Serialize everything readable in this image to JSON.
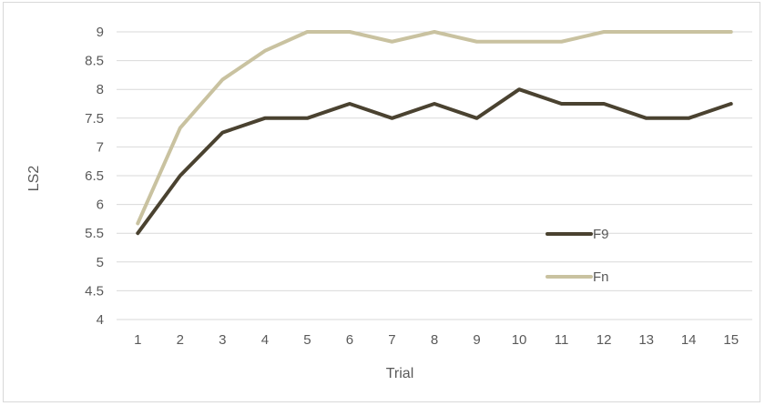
{
  "chart_data": {
    "type": "line",
    "title": "",
    "xlabel": "Trial",
    "ylabel": "LS2",
    "x": [
      1,
      2,
      3,
      4,
      5,
      6,
      7,
      8,
      9,
      10,
      11,
      12,
      13,
      14,
      15
    ],
    "x_tick_labels": [
      "1",
      "2",
      "3",
      "4",
      "5",
      "6",
      "7",
      "8",
      "9",
      "10",
      "11",
      "12",
      "13",
      "14",
      "15"
    ],
    "ylim": [
      4,
      9
    ],
    "y_ticks": [
      4,
      4.5,
      5,
      5.5,
      6,
      6.5,
      7,
      7.5,
      8,
      8.5,
      9
    ],
    "y_tick_labels": [
      "4",
      "4.5",
      "5",
      "5.5",
      "6",
      "6.5",
      "7",
      "7.5",
      "8",
      "8.5",
      "9"
    ],
    "grid": true,
    "legend_position": "right",
    "series": [
      {
        "name": "F9",
        "color": "#4a4230",
        "values": [
          5.5,
          6.5,
          7.25,
          7.5,
          7.5,
          7.75,
          7.5,
          7.75,
          7.5,
          8.0,
          7.75,
          7.75,
          7.5,
          7.5,
          7.75
        ]
      },
      {
        "name": "Fn",
        "color": "#c9c2a0",
        "values": [
          5.67,
          7.33,
          8.17,
          8.67,
          9.0,
          9.0,
          8.83,
          9.0,
          8.83,
          8.83,
          8.83,
          9.0,
          9.0,
          9.0,
          9.0
        ]
      }
    ]
  }
}
